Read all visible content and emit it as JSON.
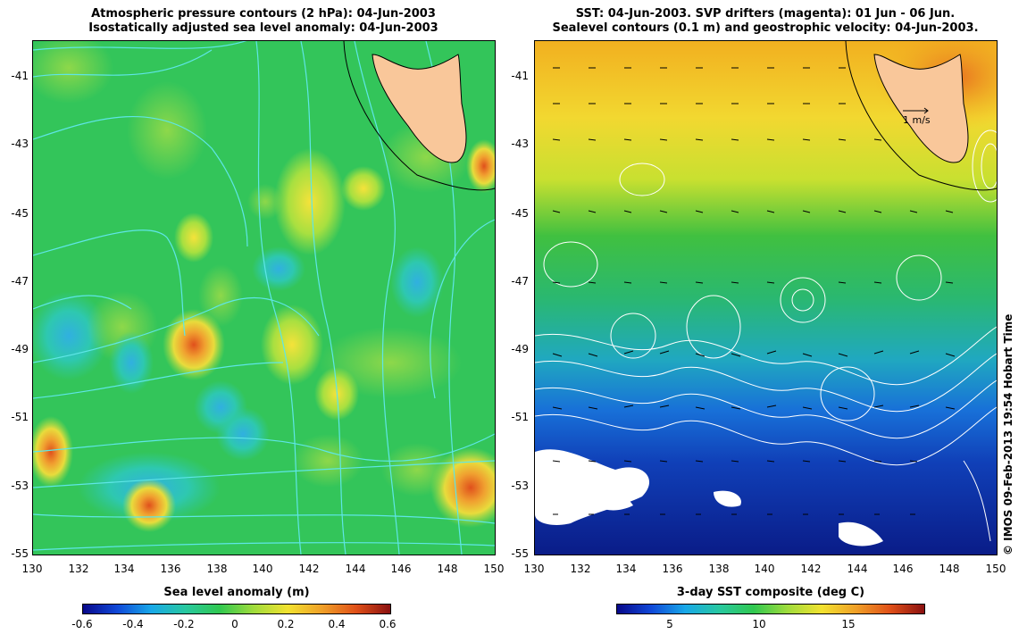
{
  "left": {
    "title_line1": "Atmospheric pressure contours (2 hPa): 04-Jun-2003",
    "title_line2": "Isostatically adjusted sea level anomaly: 04-Jun-2003",
    "colorbar_label": "Sea level anomaly (m)",
    "colorbar_ticks": [
      "-0.6",
      "-0.4",
      "-0.2",
      "0",
      "0.2",
      "0.4",
      "0.6"
    ]
  },
  "right": {
    "title_line1": "SST: 04-Jun-2003. SVP drifters (magenta): 01 Jun - 06 Jun.",
    "title_line2": "Sealevel contours (0.1 m) and geostrophic velocity: 04-Jun-2003.",
    "colorbar_label": "3-day SST composite (deg C)",
    "colorbar_ticks": [
      "5",
      "10",
      "15"
    ],
    "velocity_key": "1 m/s"
  },
  "lat_ticks": [
    "-41",
    "-43",
    "-45",
    "-47",
    "-49",
    "-51",
    "-53",
    "-55"
  ],
  "lon_ticks": [
    "130",
    "132",
    "134",
    "136",
    "138",
    "140",
    "142",
    "144",
    "146",
    "148",
    "150"
  ],
  "credit": "© IMOS 09-Feb-2013 19:54 Hobart Time",
  "colors": {
    "land": "#f9c79a",
    "sla_base": "#2ec45a",
    "contour_left": "#5ee6e6",
    "contour_right": "#ffffff"
  }
}
